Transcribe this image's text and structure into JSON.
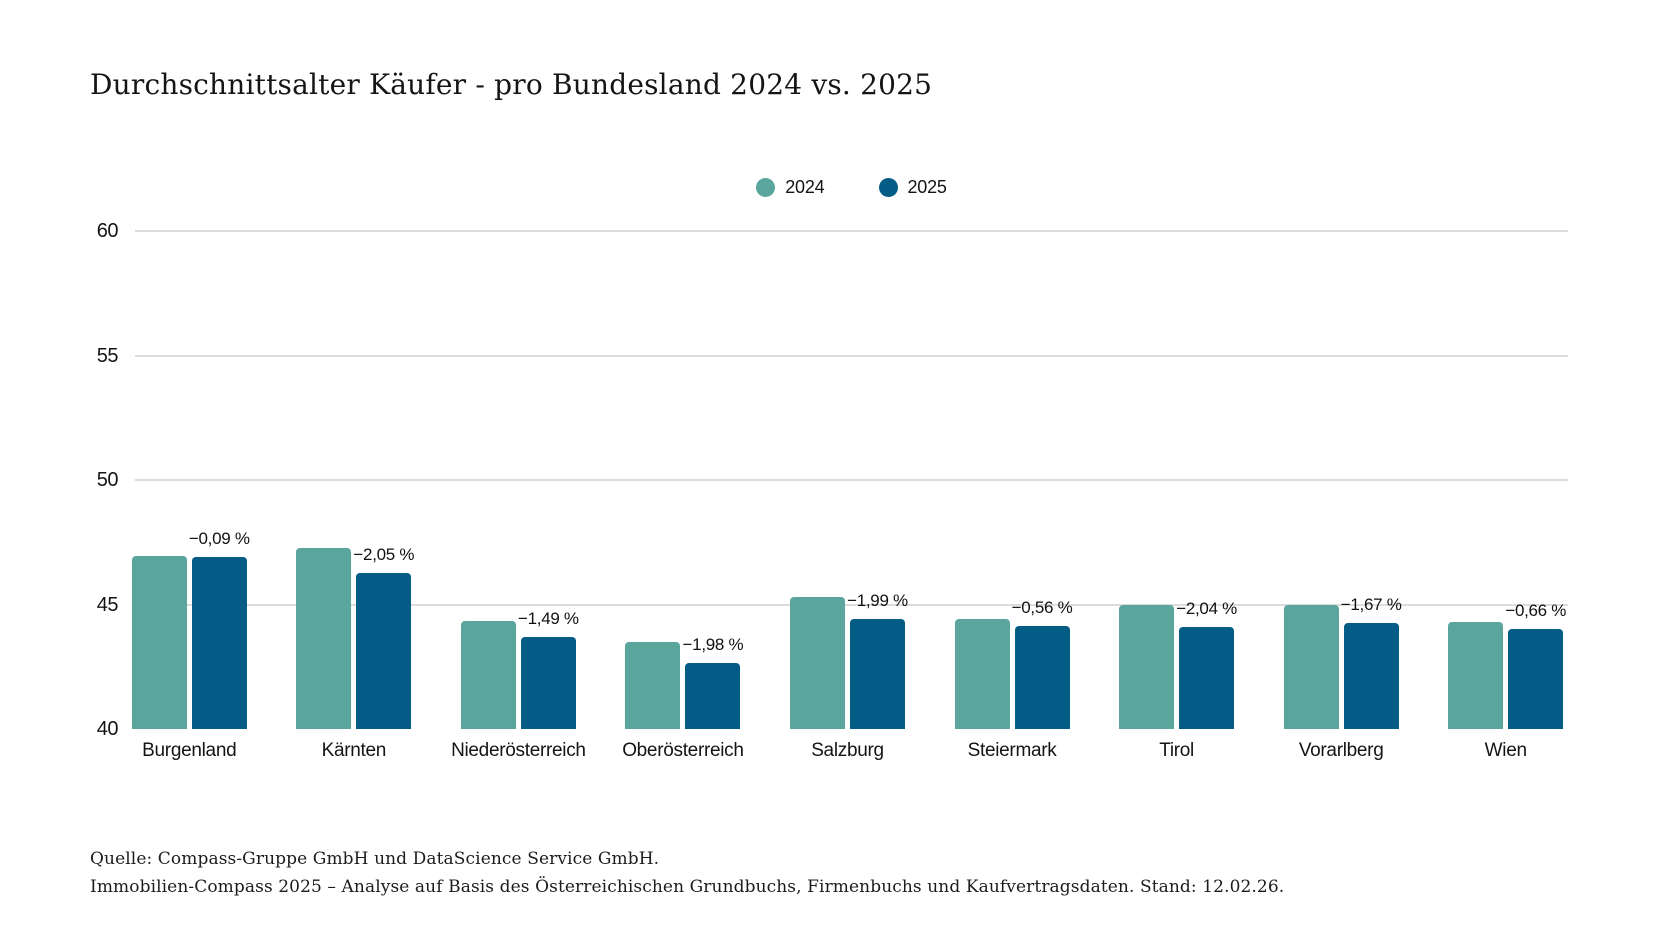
{
  "title": "Durchschnittsalter Käufer - pro Bundesland 2024 vs. 2025",
  "colors": {
    "series_2024": "#5AA69D",
    "series_2025": "#035C85",
    "gridline": "#dcdcdc",
    "text": "#1a1a1a"
  },
  "footer": {
    "line1": "Quelle: Compass-Gruppe GmbH und DataScience Service GmbH.",
    "line2": "Immobilien-Compass 2025 – Analyse auf Basis des Österreichischen Grundbuchs, Firmenbuchs und Kaufvertragsdaten. Stand: 12.02.26."
  },
  "chart_data": {
    "type": "bar",
    "title": "Durchschnittsalter Käufer - pro Bundesland 2024 vs. 2025",
    "categories": [
      "Burgenland",
      "Kärnten",
      "Niederösterreich",
      "Oberösterreich",
      "Salzburg",
      "Steiermark",
      "Tirol",
      "Vorarlberg",
      "Wien"
    ],
    "series": [
      {
        "name": "2024",
        "color": "#5AA69D",
        "values": [
          46.95,
          47.25,
          44.35,
          43.5,
          45.3,
          44.4,
          45.0,
          45.0,
          44.3
        ]
      },
      {
        "name": "2025",
        "color": "#035C85",
        "values": [
          46.91,
          46.28,
          43.69,
          42.64,
          44.4,
          44.15,
          44.08,
          44.25,
          44.01
        ]
      }
    ],
    "bar_labels": [
      "−0,09 %",
      "−2,05 %",
      "−1,49 %",
      "−1,98 %",
      "−1,99 %",
      "−0,56 %",
      "−2,04 %",
      "−1,67 %",
      "−0,66 %"
    ],
    "xlabel": "",
    "ylabel": "",
    "ylim": [
      40,
      60
    ],
    "yticks": [
      40,
      45,
      50,
      55,
      60
    ],
    "grid": "horizontal gridlines at 45–60, none at baseline 40",
    "legend_position": "top-center"
  }
}
